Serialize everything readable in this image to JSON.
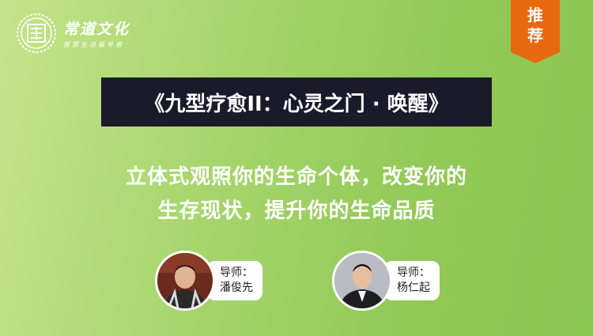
{
  "brand": {
    "logo": "square-seal-logo",
    "name": "常道文化",
    "tagline": "智慧生活倡导者"
  },
  "badge": {
    "line1": "推",
    "line2": "荐",
    "color": "#e8680f"
  },
  "course_title": "《九型疗愈II：心灵之门 · 唤醒》",
  "subtitle_lines": [
    "立体式观照你的生命个体，改变你的",
    "生存现状，提升你的生命品质"
  ],
  "teachers": [
    {
      "role": "导师：",
      "name": "潘俊先"
    },
    {
      "role": "导师：",
      "name": "杨仁起"
    }
  ],
  "colors": {
    "title_bg": "#1b1a2b",
    "background": "#a8d66e"
  }
}
